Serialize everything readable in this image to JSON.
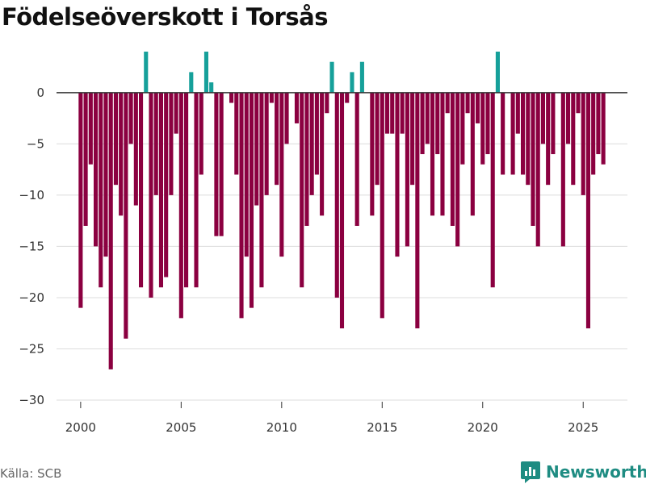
{
  "title": "Födelseöverskott i Torsås",
  "source": "Källa: SCB",
  "brand": "Newsworthy",
  "colors": {
    "negative": "#8b0040",
    "positive": "#16a09a",
    "grid": "#dcdcdc",
    "zero": "#333333",
    "brand": "#1e8c82"
  },
  "chart_data": {
    "type": "bar",
    "title": "Födelseöverskott i Torsås",
    "xlabel": "",
    "ylabel": "",
    "frequency": "quarterly",
    "x_start": 2000.0,
    "x_step": 0.25,
    "xlim": [
      1998.8,
      2027.2
    ],
    "ylim": [
      -30,
      4
    ],
    "x_ticks": [
      2000,
      2005,
      2010,
      2015,
      2020,
      2025
    ],
    "y_ticks": [
      0,
      -5,
      -10,
      -15,
      -20,
      -25,
      -30
    ],
    "values": [
      -21,
      -13,
      -7,
      -15,
      -19,
      -16,
      -27,
      -9,
      -12,
      -24,
      -5,
      -11,
      -19,
      4,
      -20,
      -10,
      -19,
      -18,
      -10,
      -4,
      -22,
      -19,
      2,
      -19,
      -8,
      4,
      1,
      -14,
      -14,
      0,
      -1,
      -8,
      -22,
      -16,
      -21,
      -11,
      -19,
      -10,
      -1,
      -9,
      -16,
      -5,
      0,
      -3,
      -19,
      -13,
      -10,
      -8,
      -12,
      -2,
      3,
      -20,
      -23,
      -1,
      2,
      -13,
      3,
      0,
      -12,
      -9,
      -22,
      -4,
      -4,
      -16,
      -4,
      -15,
      -9,
      -23,
      -6,
      -5,
      -12,
      -6,
      -12,
      -2,
      -13,
      -15,
      -7,
      -2,
      -12,
      -3,
      -7,
      -6,
      -19,
      4,
      -8,
      0,
      -8,
      -4,
      -8,
      -9,
      -13,
      -15,
      -5,
      -9,
      -6,
      0,
      -15,
      -5,
      -9,
      -2,
      -10,
      -23,
      -8,
      -6,
      -7
    ]
  }
}
